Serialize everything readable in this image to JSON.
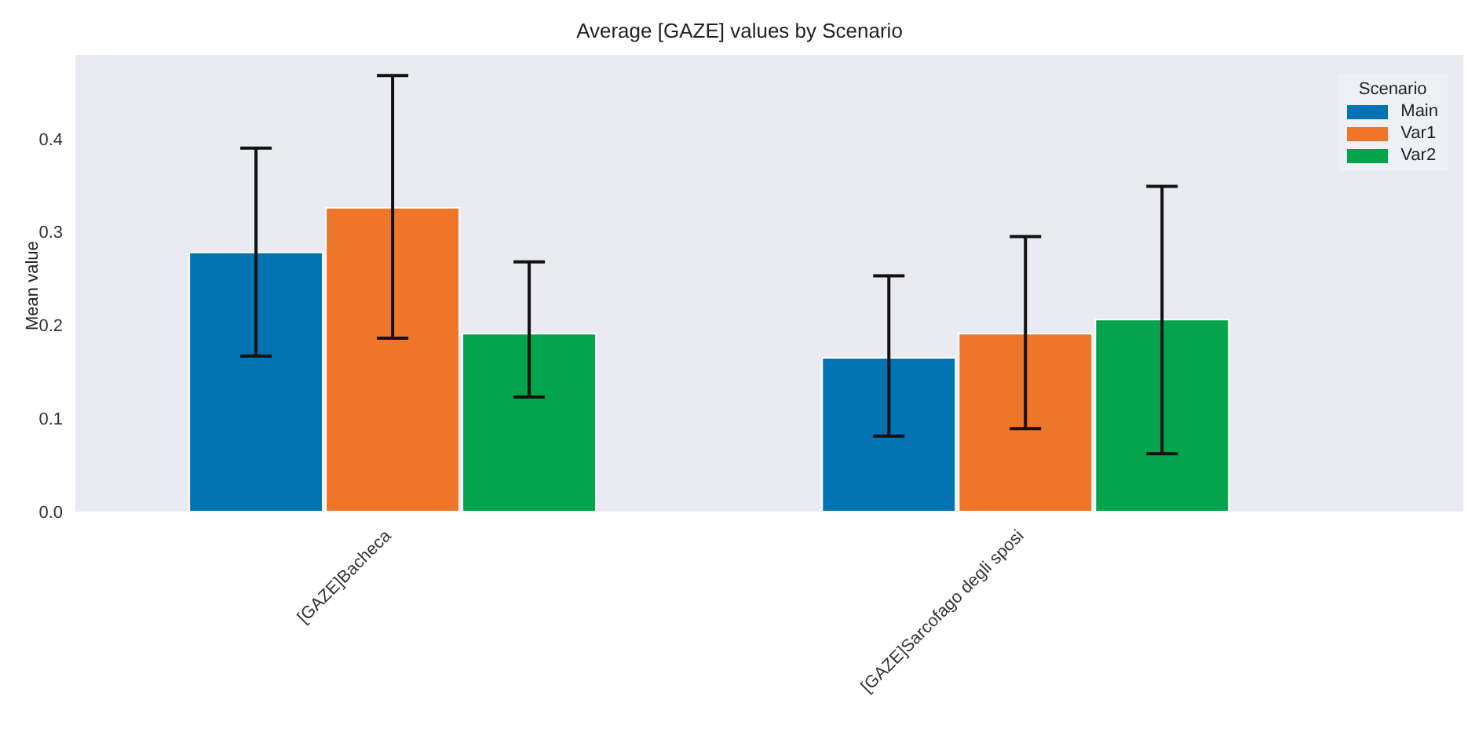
{
  "chart_data": {
    "type": "bar",
    "title": "Average [GAZE] values by Scenario",
    "ylabel": "Mean value",
    "legend_title": "Scenario",
    "categories": [
      "[GAZE]Bacheca",
      "[GAZE]Sarcofago degli sposi"
    ],
    "series": [
      {
        "name": "Main",
        "color": "#0173b2",
        "values": [
          0.278,
          0.165
        ],
        "errors": [
          [
            0.167,
            0.39
          ],
          [
            0.081,
            0.253
          ]
        ]
      },
      {
        "name": "Var1",
        "color": "#ee7628",
        "values": [
          0.326,
          0.191
        ],
        "errors": [
          [
            0.186,
            0.468
          ],
          [
            0.089,
            0.295
          ]
        ]
      },
      {
        "name": "Var2",
        "color": "#03a44b",
        "values": [
          0.191,
          0.206
        ],
        "errors": [
          [
            0.123,
            0.268
          ],
          [
            0.062,
            0.349
          ]
        ]
      }
    ],
    "ylim": [
      0,
      0.49
    ],
    "yticks": [
      {
        "value": 0,
        "label": "0.0"
      },
      {
        "value": 0.1,
        "label": "0.1"
      },
      {
        "value": 0.2,
        "label": "0.2"
      },
      {
        "value": 0.3,
        "label": "0.3"
      },
      {
        "value": 0.4,
        "label": "0.4"
      }
    ],
    "legend": "top right"
  }
}
